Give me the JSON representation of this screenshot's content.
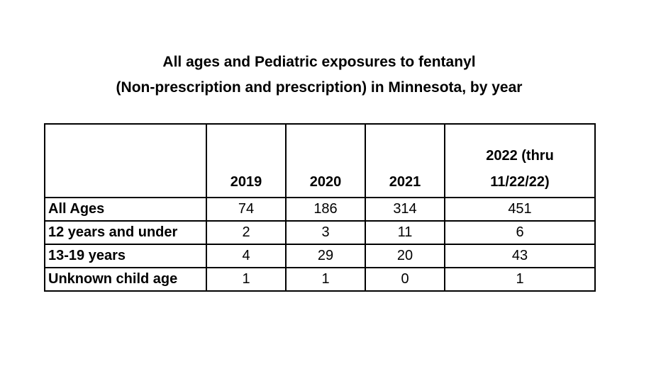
{
  "title_line1": "All ages and Pediatric exposures to fentanyl",
  "title_line2": "(Non-prescription and prescription) in Minnesota, by year",
  "chart_data": {
    "type": "table",
    "title": "All ages and Pediatric exposures to fentanyl (Non-prescription and prescription) in Minnesota, by year",
    "columns": [
      "",
      "2019",
      "2020",
      "2021",
      "2022 (thru 11/22/22)"
    ],
    "column_labels": [
      "",
      "2019",
      "2020",
      "2021",
      "2022 (thru\n11/22/22)"
    ],
    "rows": [
      {
        "label": "All Ages",
        "values": [
          74,
          186,
          314,
          451
        ]
      },
      {
        "label": "12 years and under",
        "values": [
          2,
          3,
          11,
          6
        ]
      },
      {
        "label": "13-19 years",
        "values": [
          4,
          29,
          20,
          43
        ]
      },
      {
        "label": "Unknown child age",
        "values": [
          1,
          1,
          0,
          1
        ]
      }
    ]
  }
}
